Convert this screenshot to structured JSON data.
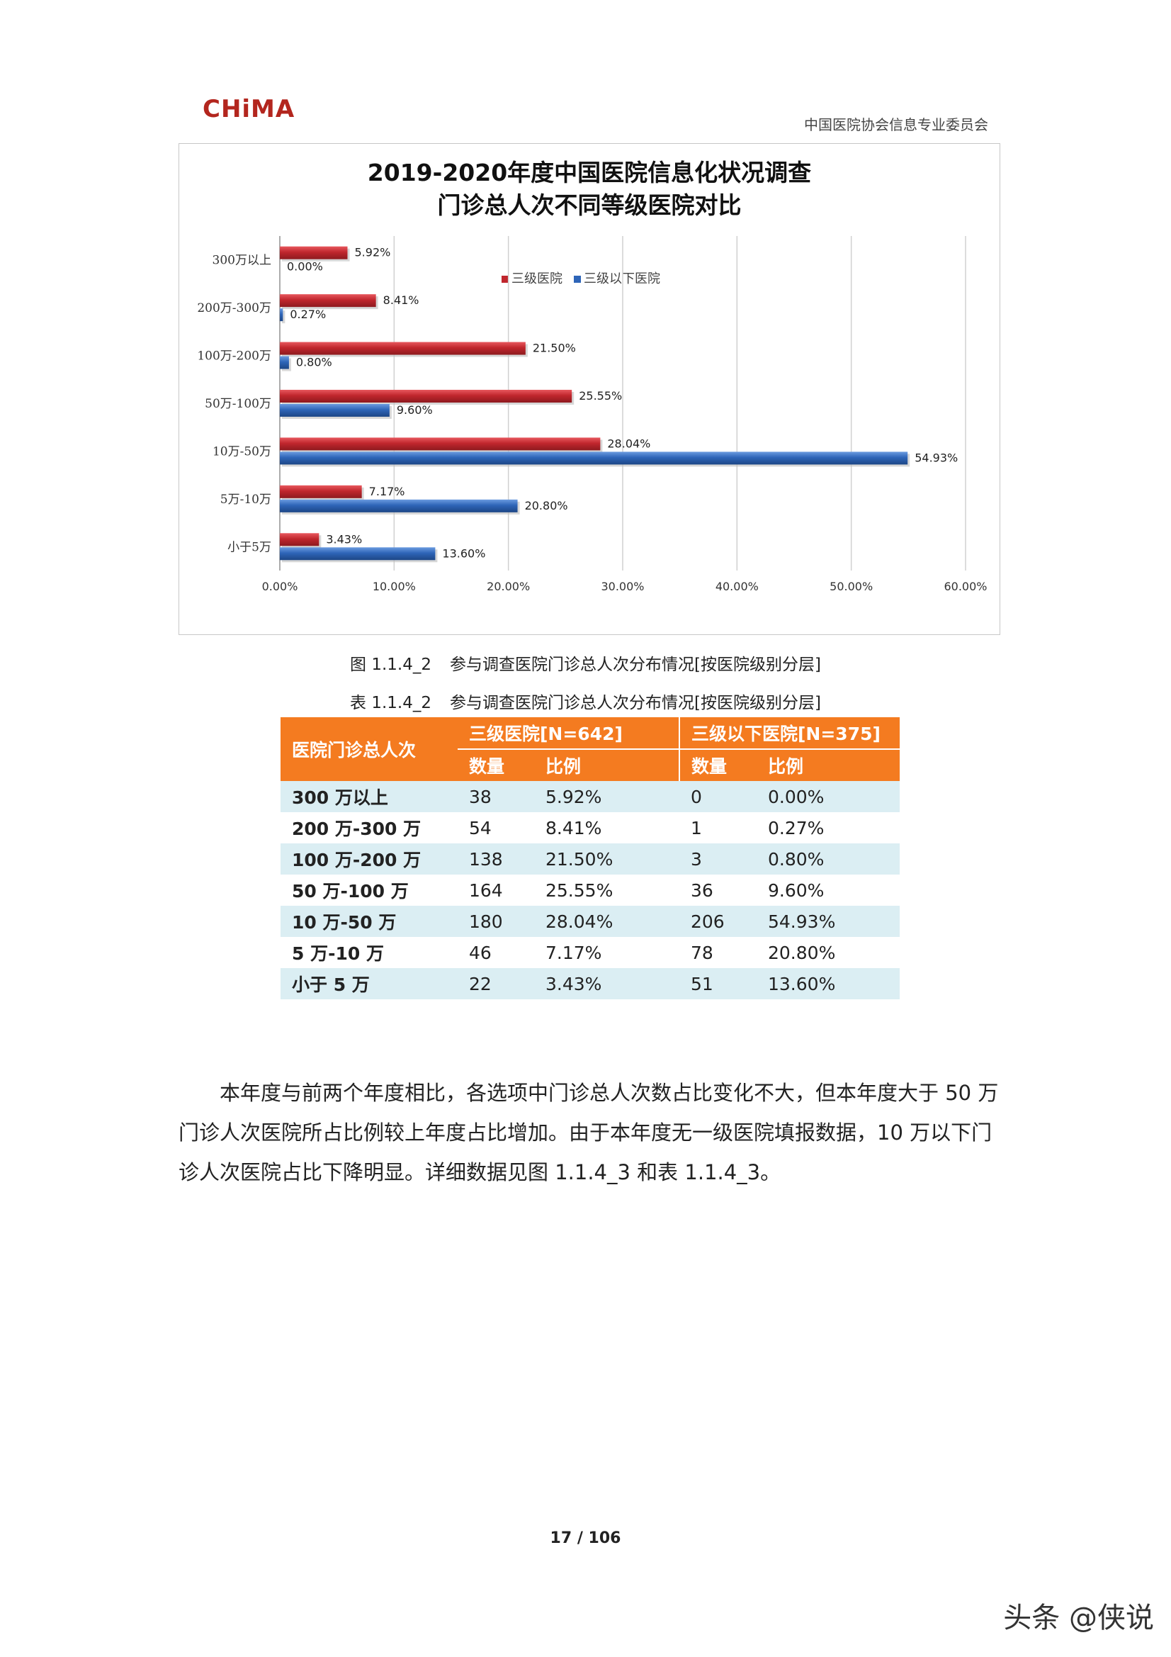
{
  "header": {
    "logo_text": "CHiMA",
    "org_name": "中国医院协会信息专业委员会"
  },
  "chart_data": {
    "type": "bar",
    "orientation": "horizontal",
    "title": "2019-2020年度中国医院信息化状况调查",
    "subtitle": "门诊总人次不同等级医院对比",
    "categories": [
      "300万以上",
      "200万-300万",
      "100万-200万",
      "50万-100万",
      "10万-50万",
      "5万-10万",
      "小于5万"
    ],
    "series": [
      {
        "name": "三级医院",
        "color": "#c0262d",
        "values": [
          5.92,
          8.41,
          21.5,
          25.55,
          28.04,
          7.17,
          3.43
        ],
        "labels": [
          "5.92%",
          "8.41%",
          "21.50%",
          "25.55%",
          "28.04%",
          "7.17%",
          "3.43%"
        ]
      },
      {
        "name": "三级以下医院",
        "color": "#2e65b8",
        "values": [
          0.0,
          0.27,
          0.8,
          9.6,
          54.93,
          20.8,
          13.6
        ],
        "labels": [
          "0.00%",
          "0.27%",
          "0.80%",
          "9.60%",
          "54.93%",
          "20.80%",
          "13.60%"
        ]
      }
    ],
    "xlim": [
      0,
      60
    ],
    "xticks": [
      "0.00%",
      "10.00%",
      "20.00%",
      "30.00%",
      "40.00%",
      "50.00%",
      "60.00%"
    ],
    "grid": true,
    "legend": "top"
  },
  "figure_caption": {
    "number": "图 1.1.4_2",
    "text": "参与调查医院门诊总人次分布情况[按医院级别分层]"
  },
  "table_caption": {
    "number": "表 1.1.4_2",
    "text": "参与调查医院门诊总人次分布情况[按医院级别分层]"
  },
  "table": {
    "row_header": "医院门诊总人次",
    "group1": "三级医院[N=642]",
    "group2": "三级以下医院[N=375]",
    "count_label": "数量",
    "ratio_label": "比例",
    "rows": [
      {
        "label": "300 万以上",
        "c1": "38",
        "r1": "5.92%",
        "c2": "0",
        "r2": "0.00%"
      },
      {
        "label": "200 万-300 万",
        "c1": "54",
        "r1": "8.41%",
        "c2": "1",
        "r2": "0.27%"
      },
      {
        "label": "100 万-200 万",
        "c1": "138",
        "r1": "21.50%",
        "c2": "3",
        "r2": "0.80%"
      },
      {
        "label": "50 万-100 万",
        "c1": "164",
        "r1": "25.55%",
        "c2": "36",
        "r2": "9.60%"
      },
      {
        "label": "10 万-50 万",
        "c1": "180",
        "r1": "28.04%",
        "c2": "206",
        "r2": "54.93%"
      },
      {
        "label": "5 万-10 万",
        "c1": "46",
        "r1": "7.17%",
        "c2": "78",
        "r2": "20.80%"
      },
      {
        "label": "小于 5 万",
        "c1": "22",
        "r1": "3.43%",
        "c2": "51",
        "r2": "13.60%"
      }
    ]
  },
  "body_text": "本年度与前两个年度相比，各选项中门诊总人次数占比变化不大，但本年度大于 50 万门诊人次医院所占比例较上年度占比增加。由于本年度无一级医院填报数据，10 万以下门诊人次医院占比下降明显。详细数据见图 1.1.4_3 和表 1.1.4_3。",
  "page_number": "17 / 106",
  "watermark": "头条 @侠说"
}
